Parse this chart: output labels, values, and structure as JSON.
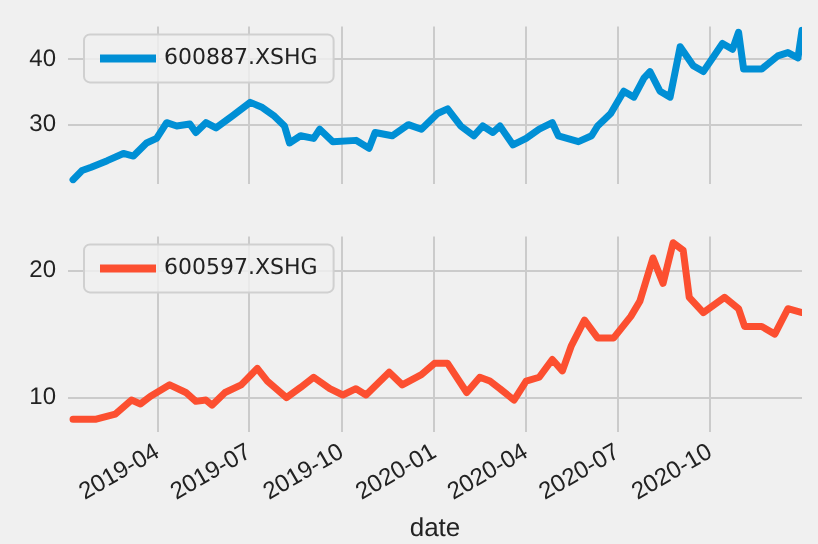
{
  "chart_data": [
    {
      "type": "line",
      "xlim": [
        "2019-01-02",
        "2020-12-31"
      ],
      "xticks": [
        "2019-04",
        "2019-07",
        "2019-10",
        "2020-01",
        "2020-04",
        "2020-07",
        "2020-10"
      ],
      "ylim": [
        21,
        45
      ],
      "yticks": [
        30,
        40
      ],
      "grid": true,
      "legend": "top left",
      "tick_labels": "y",
      "marker": "none",
      "line_style": "solid",
      "x": [
        "2019-01-07",
        "2019-01-16",
        "2019-01-25",
        "2019-02-10",
        "2019-02-26",
        "2019-03-08",
        "2019-03-21",
        "2019-03-31",
        "2019-04-10",
        "2019-04-20",
        "2019-05-03",
        "2019-05-09",
        "2019-05-19",
        "2019-05-29",
        "2019-06-14",
        "2019-07-02",
        "2019-07-13",
        "2019-07-26",
        "2019-08-05",
        "2019-08-10",
        "2019-08-21",
        "2019-09-03",
        "2019-09-09",
        "2019-09-22",
        "2019-10-15",
        "2019-10-28",
        "2019-11-03",
        "2019-11-20",
        "2019-12-06",
        "2019-12-19",
        "2020-01-04",
        "2020-01-14",
        "2020-01-27",
        "2020-02-09",
        "2020-02-18",
        "2020-02-28",
        "2020-03-06",
        "2020-03-19",
        "2020-04-01",
        "2020-04-14",
        "2020-04-27",
        "2020-05-03",
        "2020-05-23",
        "2020-06-05",
        "2020-06-11",
        "2020-06-24",
        "2020-07-07",
        "2020-07-17",
        "2020-07-27",
        "2020-08-02",
        "2020-08-12",
        "2020-08-22",
        "2020-09-01",
        "2020-09-14",
        "2020-09-24",
        "2020-10-13",
        "2020-10-23",
        "2020-10-29",
        "2020-11-03",
        "2020-11-21",
        "2020-12-07",
        "2020-12-17",
        "2020-12-27",
        "2020-12-31"
      ],
      "series": [
        {
          "name": "600887.XSHG",
          "color": "#008fd5",
          "values": [
            21.6,
            23.0,
            23.5,
            24.5,
            25.6,
            25.2,
            27.2,
            27.9,
            30.3,
            29.8,
            30.1,
            28.8,
            30.3,
            29.5,
            31.3,
            33.4,
            32.7,
            31.3,
            29.8,
            27.2,
            28.3,
            27.9,
            29.3,
            27.4,
            27.6,
            26.4,
            28.8,
            28.3,
            30.0,
            29.3,
            31.7,
            32.4,
            29.8,
            28.3,
            29.8,
            28.8,
            29.8,
            26.9,
            27.9,
            29.3,
            30.3,
            28.3,
            27.4,
            28.3,
            29.8,
            31.7,
            35.1,
            34.2,
            37.1,
            38.1,
            35.1,
            34.2,
            41.9,
            39.0,
            38.1,
            42.4,
            41.5,
            44.1,
            38.5,
            38.5,
            40.5,
            41.0,
            40.2,
            44.4
          ]
        }
      ]
    },
    {
      "type": "line",
      "xlabel": "date",
      "xlim": [
        "2019-01-02",
        "2020-12-31"
      ],
      "xticks": [
        "2019-04",
        "2019-07",
        "2019-10",
        "2020-01",
        "2020-04",
        "2020-07",
        "2020-10"
      ],
      "ylim": [
        7.3,
        22.7
      ],
      "yticks": [
        10,
        20
      ],
      "grid": true,
      "legend": "top left",
      "marker": "none",
      "line_style": "solid",
      "x": [
        "2019-01-07",
        "2019-01-30",
        "2019-02-18",
        "2019-03-06",
        "2019-03-15",
        "2019-03-25",
        "2019-04-13",
        "2019-04-29",
        "2019-05-09",
        "2019-05-19",
        "2019-05-25",
        "2019-06-07",
        "2019-06-23",
        "2019-07-09",
        "2019-07-19",
        "2019-08-07",
        "2019-08-21",
        "2019-09-03",
        "2019-09-19",
        "2019-10-02",
        "2019-10-15",
        "2019-10-25",
        "2019-11-17",
        "2019-11-30",
        "2019-12-19",
        "2020-01-01",
        "2020-01-14",
        "2020-02-02",
        "2020-02-15",
        "2020-02-25",
        "2020-03-06",
        "2020-03-20",
        "2020-04-01",
        "2020-04-14",
        "2020-04-27",
        "2020-05-07",
        "2020-05-16",
        "2020-05-29",
        "2020-06-11",
        "2020-06-27",
        "2020-07-14",
        "2020-07-23",
        "2020-08-05",
        "2020-08-15",
        "2020-08-25",
        "2020-09-04",
        "2020-09-10",
        "2020-09-24",
        "2020-10-15",
        "2020-10-29",
        "2020-11-04",
        "2020-11-21",
        "2020-12-04",
        "2020-12-17",
        "2020-12-31"
      ],
      "series": [
        {
          "name": "600597.XSHG",
          "color": "#fc4f30",
          "values": [
            8.3,
            8.3,
            8.7,
            9.8,
            9.5,
            10.1,
            11.0,
            10.4,
            9.7,
            9.8,
            9.4,
            10.4,
            11.0,
            12.3,
            11.3,
            10.0,
            10.8,
            11.6,
            10.7,
            10.2,
            10.7,
            10.2,
            12.0,
            11.0,
            11.8,
            12.7,
            12.7,
            10.4,
            11.6,
            11.3,
            10.7,
            9.8,
            11.3,
            11.6,
            13.0,
            12.1,
            14.1,
            16.1,
            14.7,
            14.7,
            16.4,
            17.6,
            21.0,
            19.0,
            22.2,
            21.6,
            17.9,
            16.7,
            17.9,
            17.0,
            15.6,
            15.6,
            15.0,
            17.0,
            16.7
          ]
        }
      ]
    }
  ]
}
